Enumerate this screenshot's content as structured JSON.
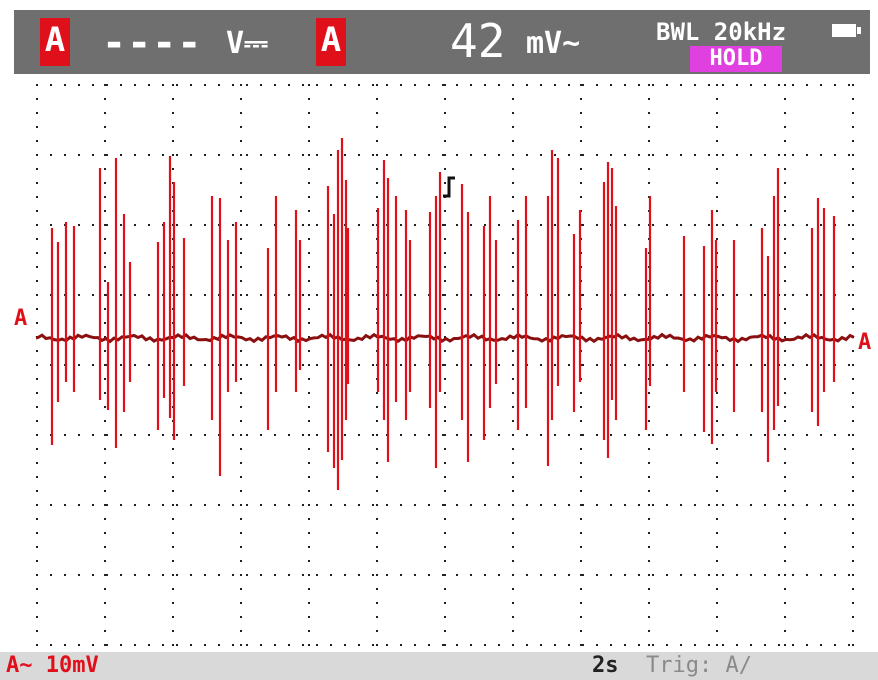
{
  "header": {
    "channel_tag_1": "A",
    "dc_reading": "----",
    "dc_unit": "V⎓",
    "channel_tag_2": "A",
    "ac_reading": "42",
    "ac_unit": "mV~",
    "bandwidth_limit": "BWL 20kHz",
    "hold_label": "HOLD",
    "battery_icon": "battery-icon"
  },
  "markers": {
    "left": "A",
    "right": "A"
  },
  "footer": {
    "vertical_scale": "A~ 10mV",
    "time_base": "2s",
    "trigger": "Trig: A∕"
  },
  "colors": {
    "trace": "#e0101a",
    "baseline": "#8a1010",
    "grid_dots": "#222222",
    "hold_bg": "#e040e0",
    "header_bg": "#6f6f6f"
  },
  "trigger_icon": "trigger-edge-icon"
}
